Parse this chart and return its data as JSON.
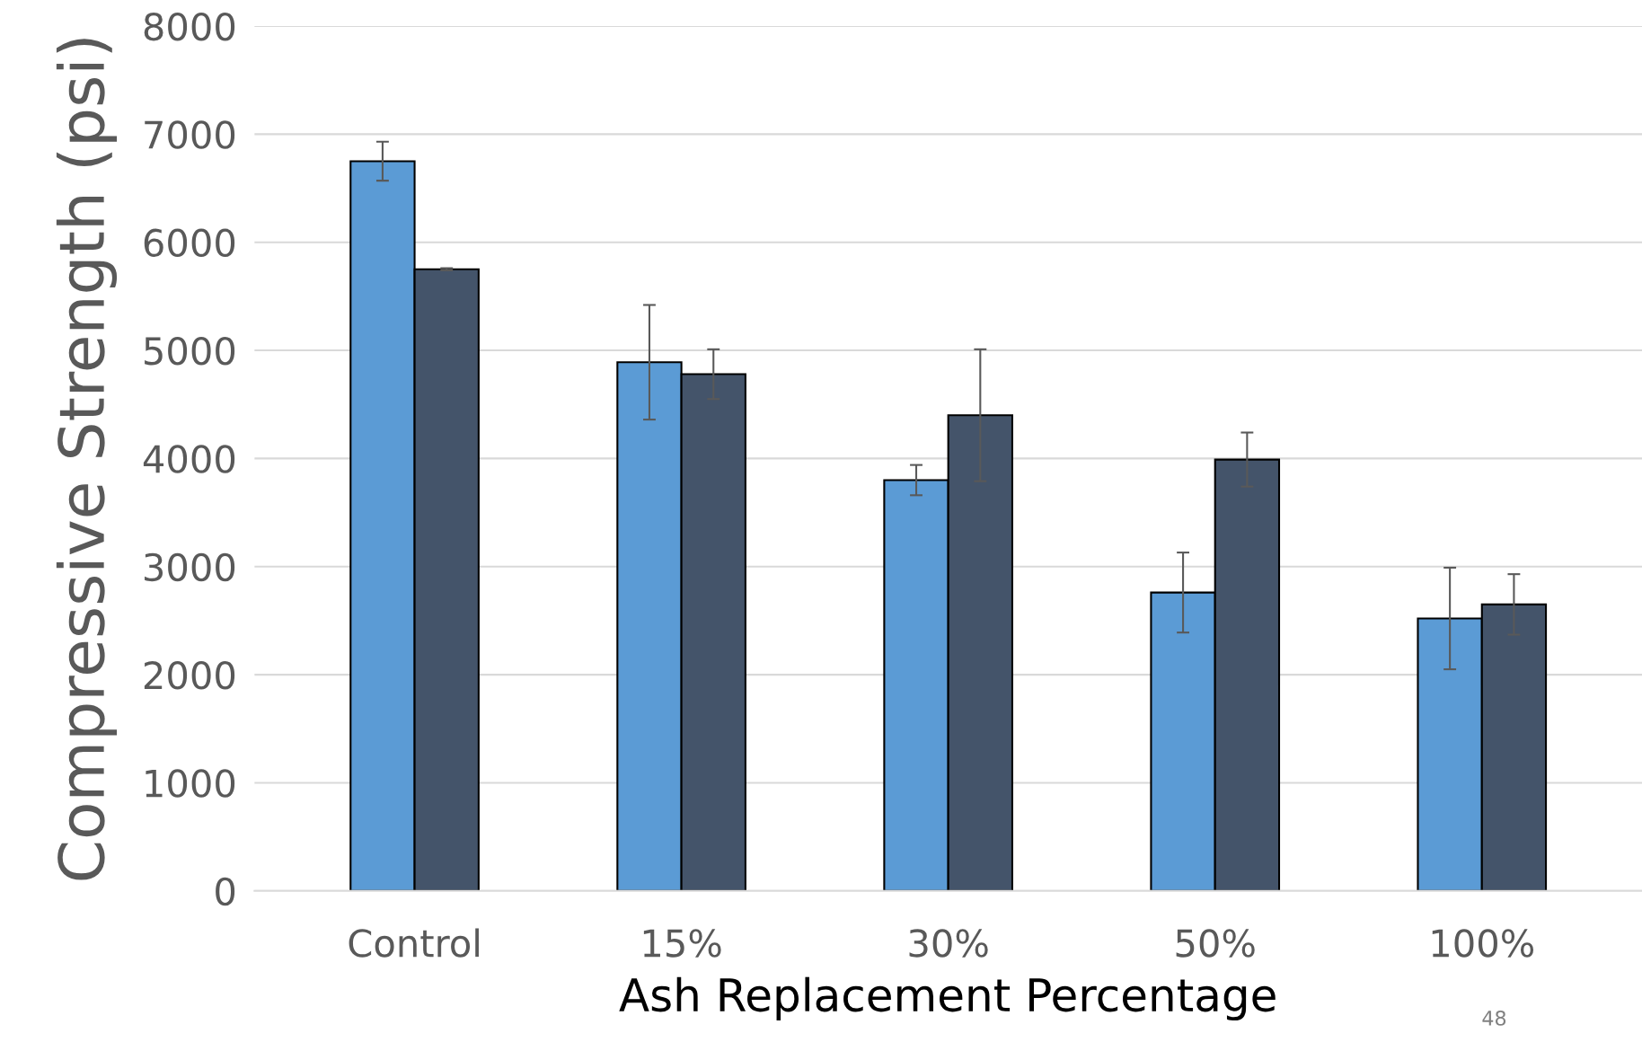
{
  "chart_data": {
    "type": "bar",
    "xlabel": "Ash Replacement Percentage",
    "ylabel": "Compressive Strength (psi)",
    "categories": [
      "Control",
      "15%",
      "30%",
      "50%",
      "100%"
    ],
    "series": [
      {
        "color": "#5b9bd5",
        "values": [
          6750,
          4890,
          3800,
          2760,
          2520
        ],
        "errors": [
          180,
          530,
          140,
          370,
          470
        ]
      },
      {
        "color": "#44546a",
        "values": [
          5750,
          4780,
          4400,
          3990,
          2650
        ],
        "errors": [
          10,
          230,
          610,
          250,
          280
        ]
      }
    ],
    "ylim": [
      0,
      8000
    ],
    "yticks": [
      0,
      1000,
      2000,
      3000,
      4000,
      5000,
      6000,
      7000,
      8000
    ],
    "grid": "y",
    "annotations": [
      "48"
    ]
  }
}
